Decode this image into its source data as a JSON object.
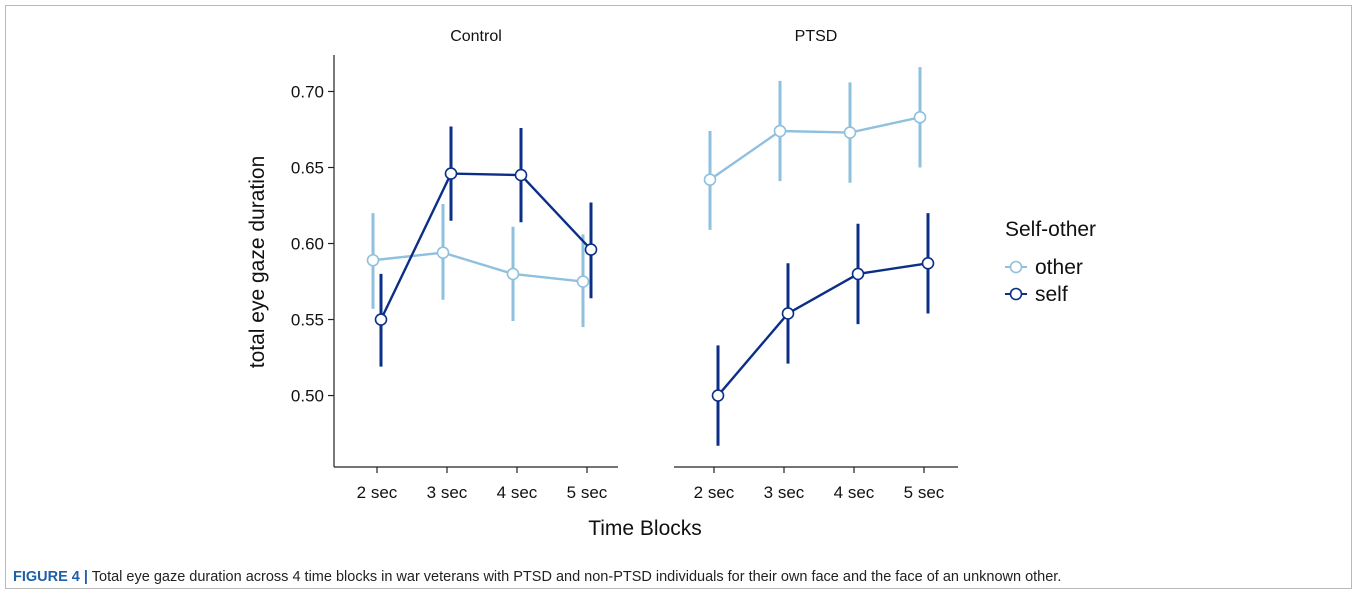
{
  "caption": {
    "label": "FIGURE 4 |",
    "text": "Total eye gaze duration across 4 time blocks in war veterans with PTSD and non-PTSD individuals for their own face and the face of an unknown other."
  },
  "chart_data": {
    "type": "line",
    "xlabel": "Time Blocks",
    "ylabel": "total eye gaze duration",
    "ylim": [
      0.453,
      0.724
    ],
    "yticks": [
      0.5,
      0.55,
      0.6,
      0.65,
      0.7
    ],
    "ytick_labels": [
      "0.50",
      "0.55",
      "0.60",
      "0.65",
      "0.70"
    ],
    "categories": [
      "2 sec",
      "3 sec",
      "4 sec",
      "5 sec"
    ],
    "grid": false,
    "legend": {
      "title": "Self-other",
      "position": "right",
      "entries": [
        {
          "name": "other",
          "color": "#8fc0dd"
        },
        {
          "name": "self",
          "color": "#0b2f86"
        }
      ]
    },
    "panels": [
      {
        "title": "Control",
        "series": [
          {
            "name": "other",
            "color": "#8fc0dd",
            "values": [
              0.589,
              0.594,
              0.58,
              0.575
            ],
            "lower": [
              0.557,
              0.563,
              0.549,
              0.545
            ],
            "upper": [
              0.62,
              0.626,
              0.611,
              0.606
            ]
          },
          {
            "name": "self",
            "color": "#0b2f86",
            "values": [
              0.55,
              0.646,
              0.645,
              0.596
            ],
            "lower": [
              0.519,
              0.615,
              0.614,
              0.564
            ],
            "upper": [
              0.58,
              0.677,
              0.676,
              0.627
            ]
          }
        ]
      },
      {
        "title": "PTSD",
        "series": [
          {
            "name": "other",
            "color": "#8fc0dd",
            "values": [
              0.642,
              0.674,
              0.673,
              0.683
            ],
            "lower": [
              0.609,
              0.641,
              0.64,
              0.65
            ],
            "upper": [
              0.674,
              0.707,
              0.706,
              0.716
            ]
          },
          {
            "name": "self",
            "color": "#0b2f86",
            "values": [
              0.5,
              0.554,
              0.58,
              0.587
            ],
            "lower": [
              0.467,
              0.521,
              0.547,
              0.554
            ],
            "upper": [
              0.533,
              0.587,
              0.613,
              0.62
            ]
          }
        ]
      }
    ]
  }
}
